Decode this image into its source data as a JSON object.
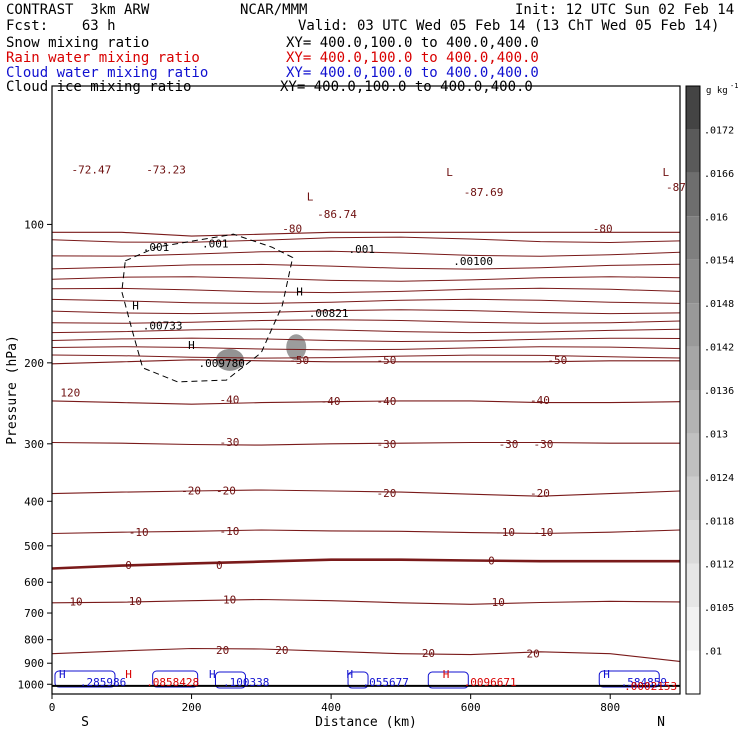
{
  "header": {
    "model": "CONTRAST  3km ARW",
    "center": "NCAR/MMM",
    "init": "Init: 12 UTC Sun 02 Feb 14",
    "fcst": "Fcst:    63 h",
    "valid": "Valid: 03 UTC Wed 05 Feb 14 (13 ChT Wed 05 Feb 14)",
    "fields": [
      {
        "label": "Snow mixing ratio",
        "xy": "XY= 400.0,100.0 to 400.0,400.0",
        "color": "#000000"
      },
      {
        "label": "Rain water mixing ratio",
        "xy": "XY= 400.0,100.0 to 400.0,400.0",
        "color": "#d80000"
      },
      {
        "label": "Cloud water mixing ratio",
        "xy": "XY= 400.0,100.0 to 400.0,400.0",
        "color": "#1010d0"
      },
      {
        "label": "Cloud ice mixing ratio",
        "xy": "XY= 400.0,100.0 to 400.0,400.0",
        "color": "#000000"
      }
    ]
  },
  "chart_data": {
    "type": "contour",
    "ylabel": "Pressure (hPa)",
    "xlabel": "Distance (km)",
    "x_end_labels": {
      "left": "S",
      "right": "N"
    },
    "xlim": [
      0,
      900
    ],
    "ylim": [
      1050,
      50
    ],
    "y_scale": "log",
    "x_ticks": [
      0,
      200,
      400,
      600,
      800
    ],
    "x_tick_labels": [
      "0",
      "200",
      "400",
      "600",
      "800"
    ],
    "y_ticks": [
      100,
      200,
      300,
      400,
      500,
      600,
      700,
      800,
      900,
      1000
    ],
    "y_tick_labels": [
      "100",
      "200",
      "300",
      "400",
      "500",
      "600",
      "700",
      "800",
      "900",
      "1000"
    ],
    "colorbar": {
      "unit": "g kg",
      "unit_exp": "-1",
      "ticks": [
        ".01",
        ".0105",
        ".0112",
        ".0118",
        ".0124",
        ".013",
        ".0136",
        ".0142",
        ".0148",
        ".0154",
        ".016",
        ".0166",
        ".0172"
      ],
      "colors": [
        "#ffffff",
        "#f2f2f2",
        "#e6e6e6",
        "#dadada",
        "#cdcdcd",
        "#c0c0c0",
        "#b3b3b3",
        "#a6a6a6",
        "#999999",
        "#8c8c8c",
        "#7f7f7f",
        "#6e6e6e",
        "#5a5a5a",
        "#444444"
      ]
    },
    "temperature_contours": [
      {
        "label": "0",
        "p": [
          560,
          552,
          546,
          541,
          536,
          536,
          538,
          540,
          540,
          540
        ],
        "highlight": true
      },
      {
        "label": "10",
        "p": [
          665,
          663,
          658,
          654,
          658,
          665,
          670,
          664,
          660,
          662
        ]
      },
      {
        "label": "20",
        "p": [
          858,
          846,
          836,
          838,
          848,
          858,
          862,
          850,
          858,
          892
        ]
      },
      {
        "label": "-10",
        "p": [
          470,
          467,
          465,
          462,
          464,
          465,
          468,
          470,
          467,
          462
        ]
      },
      {
        "label": "-20",
        "p": [
          385,
          382,
          380,
          378,
          380,
          382,
          386,
          390,
          385,
          380
        ]
      },
      {
        "label": "-30",
        "p": [
          298,
          299,
          301,
          302,
          300,
          299,
          298,
          298,
          299,
          299
        ]
      },
      {
        "label": "-40",
        "p": [
          242,
          244,
          246,
          244,
          243,
          242,
          242,
          244,
          244,
          243
        ]
      },
      {
        "label": "-50",
        "p": [
          201,
          199,
          197,
          198,
          199,
          199,
          199,
          199,
          198,
          198
        ]
      },
      {
        "label": "-80",
        "p": [
          104,
          104,
          106,
          105,
          104,
          104,
          104,
          104,
          104,
          104
        ]
      }
    ],
    "contour_labels": [
      {
        "text": "0",
        "x": 105,
        "p": 550,
        "color": "#6e1010"
      },
      {
        "text": "0",
        "x": 235,
        "p": 551,
        "color": "#6e1010"
      },
      {
        "text": "0",
        "x": 625,
        "p": 538,
        "color": "#6e1010"
      },
      {
        "text": "10",
        "x": 25,
        "p": 660,
        "color": "#6e1010"
      },
      {
        "text": "10",
        "x": 110,
        "p": 659,
        "color": "#6e1010"
      },
      {
        "text": "10",
        "x": 245,
        "p": 654,
        "color": "#6e1010"
      },
      {
        "text": "10",
        "x": 630,
        "p": 663,
        "color": "#6e1010"
      },
      {
        "text": "20",
        "x": 235,
        "p": 843,
        "color": "#6e1010"
      },
      {
        "text": "20",
        "x": 320,
        "p": 843,
        "color": "#6e1010"
      },
      {
        "text": "20",
        "x": 530,
        "p": 855,
        "color": "#6e1010"
      },
      {
        "text": "20",
        "x": 680,
        "p": 857,
        "color": "#6e1010"
      },
      {
        "text": "-10",
        "x": 110,
        "p": 466,
        "color": "#6e1010"
      },
      {
        "text": "-10",
        "x": 240,
        "p": 464,
        "color": "#6e1010"
      },
      {
        "text": "-10",
        "x": 635,
        "p": 466,
        "color": "#6e1010"
      },
      {
        "text": "-10",
        "x": 690,
        "p": 466,
        "color": "#6e1010"
      },
      {
        "text": "-20",
        "x": 185,
        "p": 379,
        "color": "#6e1010"
      },
      {
        "text": "-20",
        "x": 235,
        "p": 379,
        "color": "#6e1010"
      },
      {
        "text": "-20",
        "x": 465,
        "p": 384,
        "color": "#6e1010"
      },
      {
        "text": "-20",
        "x": 685,
        "p": 384,
        "color": "#6e1010"
      },
      {
        "text": "-30",
        "x": 240,
        "p": 297,
        "color": "#6e1010"
      },
      {
        "text": "-30",
        "x": 465,
        "p": 300,
        "color": "#6e1010"
      },
      {
        "text": "-30",
        "x": 640,
        "p": 300,
        "color": "#6e1010"
      },
      {
        "text": "-30",
        "x": 690,
        "p": 300,
        "color": "#6e1010"
      },
      {
        "text": "-40",
        "x": 240,
        "p": 240,
        "color": "#6e1010"
      },
      {
        "text": "-40",
        "x": 385,
        "p": 242,
        "color": "#6e1010"
      },
      {
        "text": "-40",
        "x": 465,
        "p": 242,
        "color": "#6e1010"
      },
      {
        "text": "-40",
        "x": 685,
        "p": 241,
        "color": "#6e1010"
      },
      {
        "text": "-50",
        "x": 340,
        "p": 197,
        "color": "#6e1010"
      },
      {
        "text": "-50",
        "x": 465,
        "p": 197,
        "color": "#6e1010"
      },
      {
        "text": "-50",
        "x": 710,
        "p": 197,
        "color": "#6e1010"
      },
      {
        "text": "-80",
        "x": 330,
        "p": 102,
        "color": "#6e1010"
      },
      {
        "text": "-80",
        "x": 775,
        "p": 102,
        "color": "#6e1010"
      },
      {
        "text": "120",
        "x": 12,
        "p": 232,
        "color": "#6e1010"
      },
      {
        "text": "-72.47",
        "x": 28,
        "p": 76,
        "color": "#6e1010"
      },
      {
        "text": "-73.23",
        "x": 135,
        "p": 76,
        "color": "#6e1010"
      },
      {
        "text": "-86.74",
        "x": 380,
        "p": 95,
        "color": "#6e1010"
      },
      {
        "text": "-87.69",
        "x": 590,
        "p": 85,
        "color": "#6e1010"
      },
      {
        "text": "-87",
        "x": 880,
        "p": 83,
        "color": "#6e1010"
      },
      {
        "text": "L",
        "x": 365,
        "p": 87,
        "color": "#6e1010"
      },
      {
        "text": "L",
        "x": 565,
        "p": 77,
        "color": "#6e1010"
      },
      {
        "text": "L",
        "x": 875,
        "p": 77,
        "color": "#6e1010"
      },
      {
        "text": ".001",
        "x": 130,
        "p": 112,
        "color": "#000000"
      },
      {
        "text": ".001",
        "x": 215,
        "p": 110,
        "color": "#000000"
      },
      {
        "text": ".001",
        "x": 425,
        "p": 113,
        "color": "#000000"
      },
      {
        "text": "H",
        "x": 115,
        "p": 150,
        "color": "#000000"
      },
      {
        "text": ".00733",
        "x": 130,
        "p": 166,
        "color": "#000000"
      },
      {
        "text": "H",
        "x": 350,
        "p": 140,
        "color": "#000000"
      },
      {
        "text": ".00821",
        "x": 368,
        "p": 156,
        "color": "#000000"
      },
      {
        "text": ".00100",
        "x": 575,
        "p": 120,
        "color": "#000000"
      },
      {
        "text": "H",
        "x": 195,
        "p": 183,
        "color": "#000000"
      },
      {
        "text": ".009780",
        "x": 210,
        "p": 200,
        "color": "#000000"
      },
      {
        "text": "H",
        "x": 10,
        "p": 950,
        "color": "#1010d0"
      },
      {
        "text": ".285986",
        "x": 40,
        "p": 990,
        "color": "#1010d0"
      },
      {
        "text": "H",
        "x": 225,
        "p": 950,
        "color": "#1010d0"
      },
      {
        "text": ".100338",
        "x": 245,
        "p": 990,
        "color": "#1010d0"
      },
      {
        "text": "H",
        "x": 422,
        "p": 950,
        "color": "#1010d0"
      },
      {
        "text": ".055677",
        "x": 445,
        "p": 990,
        "color": "#1010d0"
      },
      {
        "text": "H",
        "x": 790,
        "p": 950,
        "color": "#1010d0"
      },
      {
        "text": ".584859",
        "x": 815,
        "p": 990,
        "color": "#1010d0"
      },
      {
        "text": "H",
        "x": 105,
        "p": 950,
        "color": "#d80000"
      },
      {
        "text": ".0858428",
        "x": 135,
        "p": 990,
        "color": "#d80000"
      },
      {
        "text": "H",
        "x": 560,
        "p": 950,
        "color": "#d80000"
      },
      {
        "text": ".0096671",
        "x": 590,
        "p": 990,
        "color": "#d80000"
      },
      {
        "text": ".0002153",
        "x": 820,
        "p": 1008,
        "color": "#d80000"
      }
    ]
  }
}
